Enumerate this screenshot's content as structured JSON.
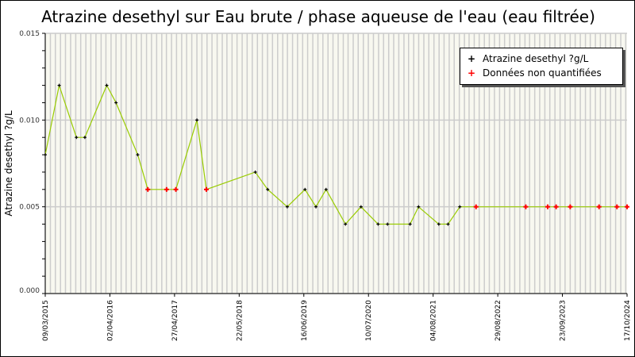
{
  "chart_data": {
    "type": "line",
    "title": "Atrazine desethyl sur Eau brute / phase aqueuse de l'eau (eau filtrée)",
    "ylabel": "Atrazine desethyl ?g/L",
    "xlabel": "",
    "ylim": [
      0,
      0.015
    ],
    "xlim": [
      "2015-03-09",
      "2024-10-17"
    ],
    "yticks": [
      "0.000",
      "0.005",
      "0.010",
      "0.015"
    ],
    "yvals": [
      0,
      0.005,
      0.01,
      0.015
    ],
    "xticks": [
      {
        "label": "09/03/2015",
        "date": "2015-03-09"
      },
      {
        "label": "02/04/2016",
        "date": "2016-04-02"
      },
      {
        "label": "27/04/2017",
        "date": "2017-04-27"
      },
      {
        "label": "22/05/2018",
        "date": "2018-05-22"
      },
      {
        "label": "16/06/2019",
        "date": "2019-06-16"
      },
      {
        "label": "10/07/2020",
        "date": "2020-07-10"
      },
      {
        "label": "04/08/2021",
        "date": "2021-08-04"
      },
      {
        "label": "29/08/2022",
        "date": "2022-08-29"
      },
      {
        "label": "23/09/2023",
        "date": "2023-09-23"
      },
      {
        "label": "17/10/2024",
        "date": "2024-10-17"
      }
    ],
    "legend": {
      "placement": "top-right",
      "entries": [
        {
          "label": "Atrazine desethyl ?g/L",
          "color": "#000000"
        },
        {
          "label": "Données non quantifiées",
          "color": "#ff0000"
        }
      ]
    },
    "colors": {
      "line": "#99cc00",
      "grid": "#cccccc",
      "plot_bg": "#f8f8f0",
      "quantified": "#000000",
      "non_quantified": "#ff0000"
    },
    "points": [
      {
        "date": "2015-03-09",
        "value": 0.008,
        "nq": false
      },
      {
        "date": "2015-06-01",
        "value": 0.012,
        "nq": false
      },
      {
        "date": "2015-09-13",
        "value": 0.009,
        "nq": false
      },
      {
        "date": "2015-11-03",
        "value": 0.009,
        "nq": false
      },
      {
        "date": "2016-03-14",
        "value": 0.012,
        "nq": false
      },
      {
        "date": "2016-05-09",
        "value": 0.011,
        "nq": false
      },
      {
        "date": "2016-09-17",
        "value": 0.008,
        "nq": false
      },
      {
        "date": "2016-11-17",
        "value": 0.006,
        "nq": true
      },
      {
        "date": "2017-03-10",
        "value": 0.006,
        "nq": true
      },
      {
        "date": "2017-05-05",
        "value": 0.006,
        "nq": true
      },
      {
        "date": "2017-09-09",
        "value": 0.01,
        "nq": false
      },
      {
        "date": "2017-11-05",
        "value": 0.006,
        "nq": true
      },
      {
        "date": "2018-08-27",
        "value": 0.007,
        "nq": false
      },
      {
        "date": "2018-11-10",
        "value": 0.006,
        "nq": false
      },
      {
        "date": "2019-03-08",
        "value": 0.005,
        "nq": false
      },
      {
        "date": "2019-06-23",
        "value": 0.006,
        "nq": false
      },
      {
        "date": "2019-08-28",
        "value": 0.005,
        "nq": false
      },
      {
        "date": "2019-10-28",
        "value": 0.006,
        "nq": false
      },
      {
        "date": "2020-02-22",
        "value": 0.004,
        "nq": false
      },
      {
        "date": "2020-05-26",
        "value": 0.005,
        "nq": false
      },
      {
        "date": "2020-09-06",
        "value": 0.004,
        "nq": false
      },
      {
        "date": "2020-11-02",
        "value": 0.004,
        "nq": false
      },
      {
        "date": "2021-03-18",
        "value": 0.004,
        "nq": false
      },
      {
        "date": "2021-05-08",
        "value": 0.005,
        "nq": false
      },
      {
        "date": "2021-09-07",
        "value": 0.004,
        "nq": false
      },
      {
        "date": "2021-11-02",
        "value": 0.004,
        "nq": false
      },
      {
        "date": "2022-01-12",
        "value": 0.005,
        "nq": false
      },
      {
        "date": "2022-04-20",
        "value": 0.005,
        "nq": true
      },
      {
        "date": "2023-02-14",
        "value": 0.005,
        "nq": true
      },
      {
        "date": "2023-06-26",
        "value": 0.005,
        "nq": true
      },
      {
        "date": "2023-08-16",
        "value": 0.005,
        "nq": true
      },
      {
        "date": "2023-11-09",
        "value": 0.005,
        "nq": true
      },
      {
        "date": "2024-05-01",
        "value": 0.005,
        "nq": true
      },
      {
        "date": "2024-08-17",
        "value": 0.005,
        "nq": true
      },
      {
        "date": "2024-10-17",
        "value": 0.005,
        "nq": true
      }
    ]
  }
}
